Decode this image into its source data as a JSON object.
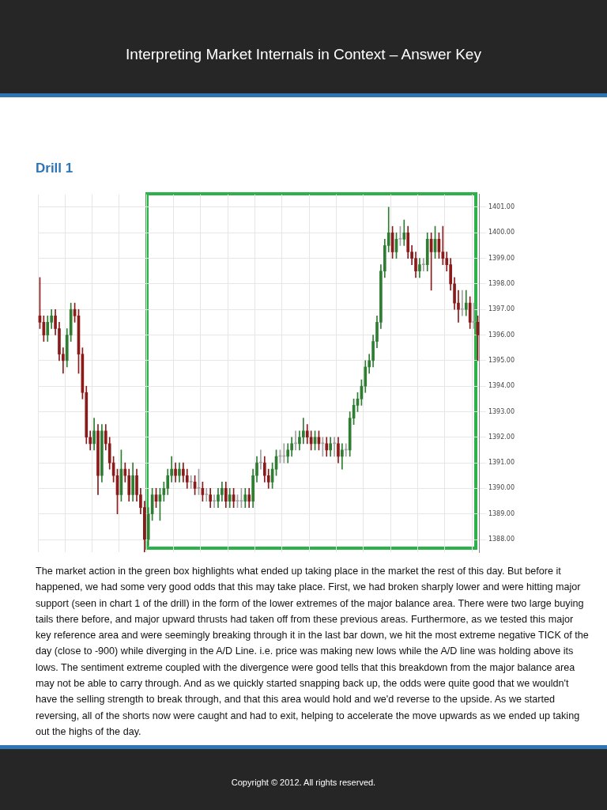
{
  "chart_data": {
    "type": "candlestick",
    "title": "Interpreting Market Internals in Context – Answer Key",
    "subtitle": "Drill 1",
    "categories": [
      null,
      null,
      null,
      null,
      null,
      null,
      null,
      null,
      null,
      null,
      null,
      null,
      null,
      null,
      null,
      null,
      null,
      null,
      null,
      null,
      null,
      null,
      null,
      null,
      null,
      null,
      null,
      null,
      null,
      null,
      null,
      null,
      null,
      null,
      null,
      null,
      null,
      null,
      null,
      null,
      null,
      null,
      null,
      null,
      null,
      null,
      null,
      null,
      null,
      null,
      null,
      null,
      null,
      null,
      null,
      null,
      null,
      null,
      null,
      null,
      null,
      null,
      null,
      null,
      null,
      null,
      null,
      null,
      null,
      null,
      null,
      null,
      null,
      null,
      null,
      null,
      null,
      null,
      null,
      null,
      null,
      null,
      null,
      null,
      null,
      null,
      null,
      null,
      null,
      null,
      null,
      null,
      null,
      null,
      null,
      null,
      null,
      null,
      null,
      null,
      null,
      null,
      null,
      null,
      null,
      null,
      null,
      null,
      null,
      null,
      null,
      null,
      null,
      null
    ],
    "ohlc": [
      [
        1396.75,
        1398.25,
        1396.25,
        1396.5
      ],
      [
        1396.5,
        1396.75,
        1395.75,
        1396
      ],
      [
        1396,
        1396.75,
        1395.75,
        1396.5
      ],
      [
        1396.5,
        1397,
        1396.25,
        1396.75
      ],
      [
        1396.75,
        1397,
        1396,
        1396.25
      ],
      [
        1396.25,
        1396.5,
        1395,
        1395.25
      ],
      [
        1395.25,
        1395.5,
        1394.5,
        1395
      ],
      [
        1395,
        1396.25,
        1394.75,
        1396
      ],
      [
        1396,
        1397.25,
        1395.75,
        1397
      ],
      [
        1397,
        1397.25,
        1396.5,
        1396.75
      ],
      [
        1396.75,
        1397,
        1394.5,
        1395.25
      ],
      [
        1395.25,
        1395.5,
        1393.5,
        1393.75
      ],
      [
        1393.75,
        1394,
        1391.75,
        1392
      ],
      [
        1392,
        1392.25,
        1391.5,
        1391.75
      ],
      [
        1391.75,
        1392.75,
        1391.5,
        1392.25
      ],
      [
        1392.25,
        1392.5,
        1389.75,
        1390.5
      ],
      [
        1390.5,
        1392.5,
        1390.25,
        1392.25
      ],
      [
        1392.25,
        1392.5,
        1391.5,
        1391.75
      ],
      [
        1391.75,
        1392,
        1390.75,
        1391
      ],
      [
        1391,
        1391.25,
        1390.25,
        1390.5
      ],
      [
        1390.5,
        1390.75,
        1389,
        1389.75
      ],
      [
        1389.75,
        1391.5,
        1389.5,
        1390.75
      ],
      [
        1390.75,
        1391,
        1390.25,
        1390.5
      ],
      [
        1390.5,
        1390.75,
        1389.5,
        1389.75
      ],
      [
        1389.75,
        1391,
        1389.5,
        1390.5
      ],
      [
        1390.5,
        1390.75,
        1389.5,
        1389.75
      ],
      [
        1389.75,
        1390,
        1389,
        1389.25
      ],
      [
        1389.25,
        1389.5,
        1387.5,
        1388
      ],
      [
        1388,
        1389.25,
        1387.75,
        1389
      ],
      [
        1389,
        1390,
        1388.75,
        1389.75
      ],
      [
        1389.75,
        1390,
        1389.25,
        1389.5
      ],
      [
        1389.5,
        1390,
        1388.75,
        1389.75
      ],
      [
        1389.75,
        1390.25,
        1389.5,
        1390
      ],
      [
        1390,
        1390.75,
        1389.75,
        1390.5
      ],
      [
        1390.5,
        1391.25,
        1390.25,
        1390.75
      ],
      [
        1390.75,
        1391,
        1390.25,
        1390.5
      ],
      [
        1390.5,
        1391,
        1390.25,
        1390.75
      ],
      [
        1390.75,
        1391,
        1390.25,
        1390.5
      ],
      [
        1390.5,
        1390.75,
        1390,
        1390.25
      ],
      [
        1390.25,
        1390.5,
        1390,
        1390.25
      ],
      [
        1390.25,
        1390.5,
        1389.75,
        1390
      ],
      [
        1390,
        1390.75,
        1389.75,
        1390
      ],
      [
        1390,
        1390.25,
        1389.5,
        1389.75
      ],
      [
        1389.75,
        1390,
        1389.5,
        1389.75
      ],
      [
        1389.75,
        1390,
        1389.25,
        1389.5
      ],
      [
        1389.5,
        1389.75,
        1389.25,
        1389.5
      ],
      [
        1389.5,
        1390,
        1389.25,
        1389.75
      ],
      [
        1389.75,
        1390.25,
        1389.5,
        1390
      ],
      [
        1390,
        1390.25,
        1389.25,
        1389.5
      ],
      [
        1389.5,
        1390,
        1389.25,
        1389.75
      ],
      [
        1389.75,
        1390,
        1389.25,
        1389.5
      ],
      [
        1389.5,
        1389.75,
        1389.25,
        1389.5
      ],
      [
        1389.5,
        1390,
        1389.25,
        1389.5
      ],
      [
        1389.5,
        1390,
        1389.25,
        1389.75
      ],
      [
        1389.75,
        1390,
        1389.25,
        1389.5
      ],
      [
        1389.5,
        1390.75,
        1389.25,
        1390.5
      ],
      [
        1390.5,
        1391.25,
        1390.25,
        1391
      ],
      [
        1391,
        1391.5,
        1390.75,
        1391
      ],
      [
        1391,
        1391.25,
        1390.25,
        1390.5
      ],
      [
        1390.5,
        1390.75,
        1390,
        1390.25
      ],
      [
        1390.25,
        1391,
        1390,
        1390.75
      ],
      [
        1390.75,
        1391.5,
        1390.5,
        1391.25
      ],
      [
        1391.25,
        1391.5,
        1391,
        1391.25
      ],
      [
        1391.25,
        1391.75,
        1391,
        1391.25
      ],
      [
        1391.25,
        1391.75,
        1391,
        1391.5
      ],
      [
        1391.5,
        1392,
        1391.25,
        1391.75
      ],
      [
        1391.75,
        1392.25,
        1391.5,
        1391.75
      ],
      [
        1391.75,
        1392.25,
        1391.5,
        1392
      ],
      [
        1392,
        1392.75,
        1391.75,
        1392.25
      ],
      [
        1392.25,
        1392.5,
        1391.75,
        1392
      ],
      [
        1392,
        1392.25,
        1391.5,
        1391.75
      ],
      [
        1391.75,
        1392.25,
        1391.5,
        1392
      ],
      [
        1392,
        1392.25,
        1391.5,
        1391.75
      ],
      [
        1391.75,
        1392,
        1391.25,
        1391.75
      ],
      [
        1391.75,
        1392,
        1391.25,
        1391.5
      ],
      [
        1391.5,
        1392,
        1391.25,
        1391.75
      ],
      [
        1391.75,
        1392,
        1391.25,
        1391.75
      ],
      [
        1391.75,
        1392,
        1391,
        1391.25
      ],
      [
        1391.25,
        1391.75,
        1390.75,
        1391.5
      ],
      [
        1391.5,
        1391.75,
        1391.25,
        1391.5
      ],
      [
        1391.5,
        1393,
        1391.25,
        1392.75
      ],
      [
        1392.75,
        1393.5,
        1392.5,
        1393.25
      ],
      [
        1393.25,
        1393.75,
        1393,
        1393.5
      ],
      [
        1393.5,
        1394.25,
        1393.25,
        1394
      ],
      [
        1394,
        1395,
        1393.75,
        1394.75
      ],
      [
        1394.75,
        1395.25,
        1394.5,
        1395
      ],
      [
        1395,
        1396,
        1394.75,
        1395.75
      ],
      [
        1395.75,
        1396.75,
        1395.5,
        1396.5
      ],
      [
        1396.5,
        1398.75,
        1396.25,
        1398.5
      ],
      [
        1398.5,
        1399.75,
        1398.25,
        1399.5
      ],
      [
        1399.5,
        1401,
        1399.25,
        1400
      ],
      [
        1400,
        1400.25,
        1399,
        1399.25
      ],
      [
        1399.25,
        1400,
        1399,
        1399.75
      ],
      [
        1399.75,
        1400.25,
        1399.5,
        1399.75
      ],
      [
        1399.75,
        1400.5,
        1399.5,
        1400
      ],
      [
        1400,
        1400.25,
        1399,
        1399.25
      ],
      [
        1399.25,
        1399.5,
        1398.75,
        1399
      ],
      [
        1399,
        1399.25,
        1398.25,
        1398.5
      ],
      [
        1398.5,
        1399,
        1398.25,
        1398.75
      ],
      [
        1398.75,
        1399,
        1398.5,
        1398.75
      ],
      [
        1398.75,
        1400,
        1398.5,
        1399.75
      ],
      [
        1399.75,
        1400,
        1397.75,
        1399.25
      ],
      [
        1399.25,
        1400.25,
        1399,
        1399.75
      ],
      [
        1399.75,
        1400,
        1399,
        1399.25
      ],
      [
        1399.25,
        1400.25,
        1398.75,
        1399
      ],
      [
        1399,
        1399.25,
        1398.5,
        1398.75
      ],
      [
        1398.75,
        1399,
        1397.75,
        1398
      ],
      [
        1398,
        1398.25,
        1397,
        1397.25
      ],
      [
        1397.25,
        1397.75,
        1396.5,
        1397
      ],
      [
        1397,
        1397.75,
        1396.75,
        1397
      ],
      [
        1397,
        1397.75,
        1396.75,
        1397.25
      ],
      [
        1397.25,
        1397.5,
        1396.25,
        1396.5
      ],
      [
        1396.5,
        1397.25,
        1396.25,
        1396.5
      ],
      [
        1396.5,
        1396.75,
        1395,
        1396
      ]
    ],
    "colors": [
      "#8b1a1a",
      "#8b1a1a",
      "#2e7d32",
      "#2e7d32",
      "#8b1a1a",
      "#8b1a1a",
      "#8b1a1a",
      "#2e7d32",
      "#2e7d32",
      "#8b1a1a",
      "#8b1a1a",
      "#8b1a1a",
      "#8b1a1a",
      "#8b1a1a",
      "#2e7d32",
      "#8b1a1a",
      "#2e7d32",
      "#8b1a1a",
      "#8b1a1a",
      "#8b1a1a",
      "#8b1a1a",
      "#2e7d32",
      "#8b1a1a",
      "#8b1a1a",
      "#2e7d32",
      "#8b1a1a",
      "#8b1a1a",
      "#8b1a1a",
      "#2e7d32",
      "#2e7d32",
      "#8b1a1a",
      "#2e7d32",
      "#2e7d32",
      "#2e7d32",
      "#2e7d32",
      "#8b1a1a",
      "#2e7d32",
      "#8b1a1a",
      "#8b1a1a",
      "#a0a0a0",
      "#8b1a1a",
      "#a0a0a0",
      "#8b1a1a",
      "#a0a0a0",
      "#8b1a1a",
      "#a0a0a0",
      "#2e7d32",
      "#2e7d32",
      "#8b1a1a",
      "#2e7d32",
      "#8b1a1a",
      "#a0a0a0",
      "#a0a0a0",
      "#2e7d32",
      "#8b1a1a",
      "#2e7d32",
      "#2e7d32",
      "#a0a0a0",
      "#8b1a1a",
      "#8b1a1a",
      "#2e7d32",
      "#2e7d32",
      "#a0a0a0",
      "#a0a0a0",
      "#2e7d32",
      "#2e7d32",
      "#a0a0a0",
      "#2e7d32",
      "#2e7d32",
      "#8b1a1a",
      "#8b1a1a",
      "#2e7d32",
      "#8b1a1a",
      "#a0a0a0",
      "#8b1a1a",
      "#2e7d32",
      "#a0a0a0",
      "#8b1a1a",
      "#2e7d32",
      "#a0a0a0",
      "#2e7d32",
      "#2e7d32",
      "#2e7d32",
      "#2e7d32",
      "#2e7d32",
      "#2e7d32",
      "#2e7d32",
      "#2e7d32",
      "#2e7d32",
      "#2e7d32",
      "#2e7d32",
      "#8b1a1a",
      "#2e7d32",
      "#a0a0a0",
      "#2e7d32",
      "#8b1a1a",
      "#8b1a1a",
      "#8b1a1a",
      "#2e7d32",
      "#a0a0a0",
      "#2e7d32",
      "#8b1a1a",
      "#2e7d32",
      "#8b1a1a",
      "#8b1a1a",
      "#8b1a1a",
      "#8b1a1a",
      "#8b1a1a",
      "#8b1a1a",
      "#a0a0a0",
      "#2e7d32",
      "#8b1a1a",
      "#a0a0a0",
      "#8b1a1a"
    ],
    "ylim": [
      1387.5,
      1401.5
    ],
    "yticks": [
      {
        "value": 1388,
        "label": "1388.00"
      },
      {
        "value": 1389,
        "label": "1389.00"
      },
      {
        "value": 1390,
        "label": "1390.00"
      },
      {
        "value": 1391,
        "label": "1391.00"
      },
      {
        "value": 1392,
        "label": "1392.00"
      },
      {
        "value": 1393,
        "label": "1393.00"
      },
      {
        "value": 1394,
        "label": "1394.00"
      },
      {
        "value": 1395,
        "label": "1395.00"
      },
      {
        "value": 1396,
        "label": "1396.00"
      },
      {
        "value": 1397,
        "label": "1397.00"
      },
      {
        "value": 1398,
        "label": "1398.00"
      },
      {
        "value": 1399,
        "label": "1399.00"
      },
      {
        "value": 1400,
        "label": "1400.00"
      },
      {
        "value": 1401,
        "label": "1401.00"
      }
    ],
    "grid": true,
    "tick_labels": "y",
    "annotations": [
      "The market action in the green box highlights what ended up taking place in the market the rest of this day. But before it happened, we had some very good odds that this may take place. First, we had broken sharply lower and were hitting major support (seen in chart 1 of the drill) in the form of the lower extremes of the major balance area. There were two large buying tails there before, and major upward thrusts had taken off from these previous areas. Furthermore, as we tested this major key reference area and were seemingly breaking through it in the last bar down, we hit the most extreme negative TICK of the day (close to -900) while diverging in the A/D Line. i.e. price was making new lows while the A/D line was holding above its lows. The sentiment extreme coupled with the divergence were good tells that this breakdown from the major balance area may not be able to carry through. And as we quickly started snapping back up, the odds were quite good that we wouldn't have the selling strength to break through, and that this area would hold and we'd reverse to the upside. As we started reversing, all of the shorts now were caught and had to exit, helping to accelerate the move upwards as we ended up taking out the highs of the day.",
      "Copyright © 2012. All rights reserved."
    ]
  }
}
